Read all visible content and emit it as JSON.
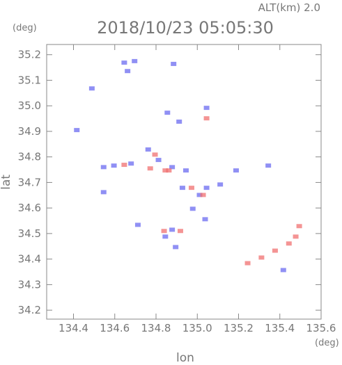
{
  "chart_data": {
    "type": "scatter",
    "title": "2018/10/23 05:05:30",
    "subtitle": "ALT(km) 2.0",
    "x_unit": "(deg)",
    "y_unit": "(deg)",
    "x_label": "lon",
    "y_label": "lat",
    "xlim": [
      134.27,
      135.6
    ],
    "ylim": [
      34.165,
      35.24
    ],
    "xticks": [
      134.4,
      134.6,
      134.8,
      {
        "value": 135,
        "label": "135.0"
      },
      135.2,
      135.4,
      135.6
    ],
    "yticks": [
      34.2,
      34.3,
      34.4,
      34.5,
      34.6,
      34.7,
      34.8,
      34.9,
      {
        "value": 35,
        "label": "35.0"
      },
      35.1,
      35.2
    ],
    "series": [
      {
        "color": "#6b6bf0",
        "x": [
          134.646,
          134.662,
          134.696,
          134.489,
          134.416,
          134.546,
          134.596,
          134.679,
          134.762,
          134.812,
          134.878,
          134.945,
          134.928,
          135.011,
          134.978,
          135.045,
          135.111,
          135.188,
          135.344,
          134.878,
          134.845,
          134.895,
          135.038,
          134.855,
          134.912,
          134.546,
          134.712,
          135.417,
          134.885,
          135.045
        ],
        "values": [
          35.169,
          35.136,
          35.175,
          35.068,
          34.905,
          34.76,
          34.766,
          34.774,
          34.829,
          34.788,
          34.76,
          34.747,
          34.679,
          34.651,
          34.597,
          34.679,
          34.692,
          34.747,
          34.766,
          34.515,
          34.488,
          34.447,
          34.556,
          34.973,
          34.938,
          34.662,
          34.534,
          34.357,
          35.164,
          34.992
        ]
      },
      {
        "color": "#f07070",
        "x": [
          134.646,
          134.772,
          134.845,
          134.918,
          135.045,
          134.839,
          134.972,
          135.028,
          135.244,
          135.311,
          135.377,
          135.444,
          135.494,
          135.477,
          134.862,
          134.795
        ],
        "values": [
          34.769,
          34.755,
          34.747,
          34.51,
          34.951,
          34.51,
          34.679,
          34.651,
          34.384,
          34.406,
          34.433,
          34.461,
          34.529,
          34.488,
          34.747,
          34.809
        ]
      }
    ]
  }
}
